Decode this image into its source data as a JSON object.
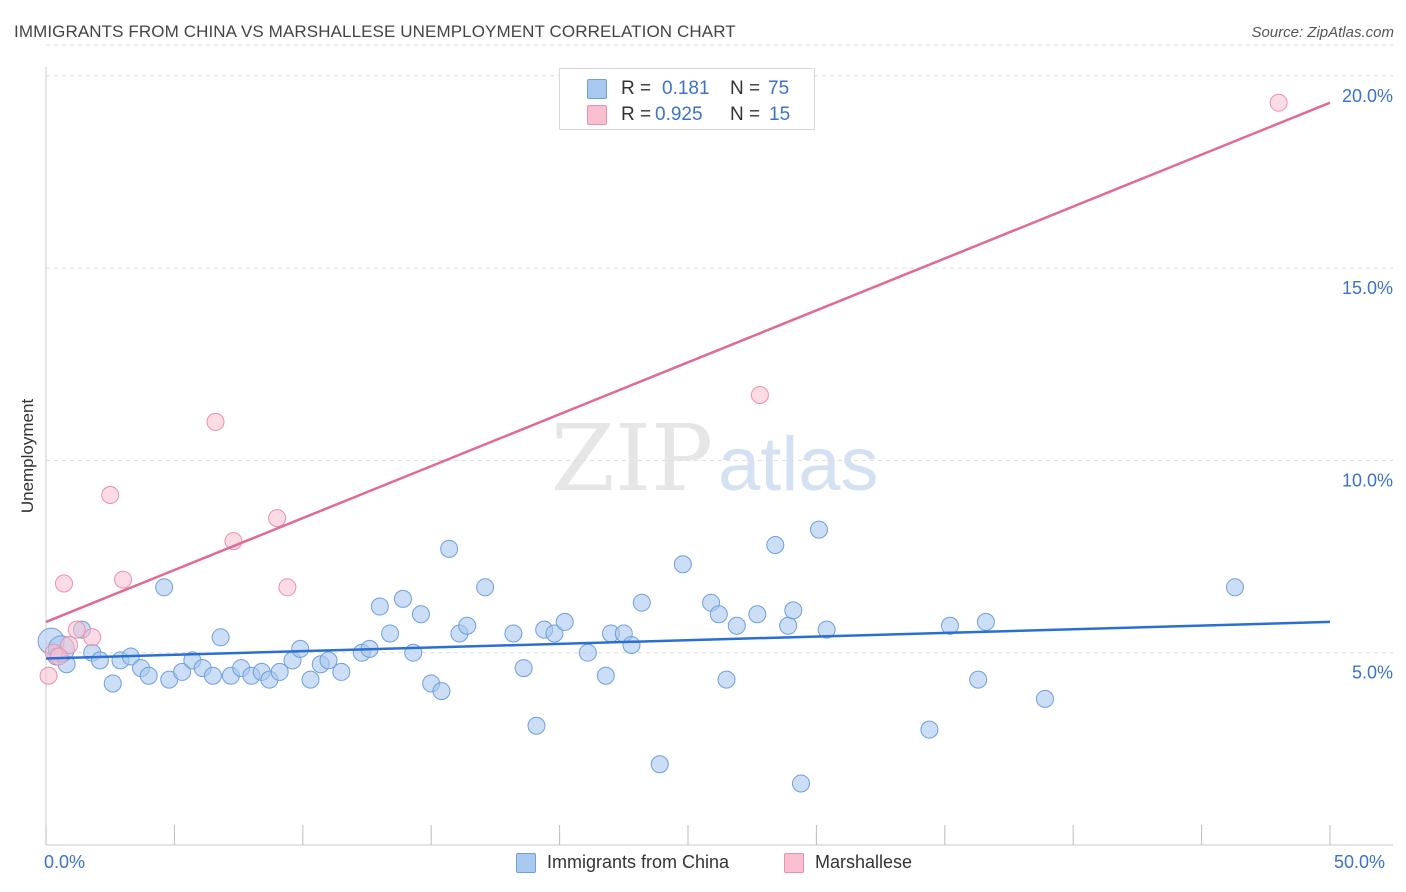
{
  "header": {
    "title": "IMMIGRANTS FROM CHINA VS MARSHALLESE UNEMPLOYMENT CORRELATION CHART",
    "source": "Source: ZipAtlas.com"
  },
  "watermark": {
    "zip": "ZIP",
    "atlas": "atlas"
  },
  "legend": {
    "series": [
      {
        "r_label": "R =",
        "r_value": "0.181",
        "n_label": "N =",
        "n_value": "75"
      },
      {
        "r_label": "R =",
        "r_value": "0.925",
        "n_label": "N =",
        "n_value": "15"
      }
    ]
  },
  "chart_data": {
    "type": "scatter",
    "title": "IMMIGRANTS FROM CHINA VS MARSHALLESE UNEMPLOYMENT CORRELATION CHART",
    "xlabel": "",
    "ylabel": "Unemployment",
    "xlim": [
      0,
      50
    ],
    "ylim": [
      0,
      20.8
    ],
    "x_tick_labels": [
      "0.0%",
      "50.0%"
    ],
    "y_ticks": [
      5,
      10,
      15,
      20
    ],
    "y_tick_labels": [
      "5.0%",
      "10.0%",
      "15.0%",
      "20.0%"
    ],
    "grid": true,
    "legend_position": "top-center",
    "colors": {
      "china_fill": "#a9c8ef",
      "china_stroke": "#6f9fdc",
      "china_line": "#2b6fd1",
      "marsh_fill": "#f7bfd0",
      "marsh_stroke": "#ec8fac",
      "marsh_line": "#e06a96",
      "tick_label": "#3c72c7",
      "grid": "#dcdcdc"
    },
    "series": [
      {
        "name": "Immigrants from China",
        "r": 0.181,
        "n": 75,
        "trend": {
          "x0": 0,
          "y0": 4.85,
          "x1": 50,
          "y1": 5.8
        },
        "points": [
          [
            0.2,
            5.3
          ],
          [
            0.4,
            4.9
          ],
          [
            0.8,
            4.7
          ],
          [
            1.4,
            5.6
          ],
          [
            1.8,
            5.0
          ],
          [
            2.1,
            4.8
          ],
          [
            2.6,
            4.2
          ],
          [
            2.9,
            4.8
          ],
          [
            3.3,
            4.9
          ],
          [
            3.7,
            4.6
          ],
          [
            4.0,
            4.4
          ],
          [
            4.6,
            6.7
          ],
          [
            4.8,
            4.3
          ],
          [
            5.3,
            4.5
          ],
          [
            5.7,
            4.8
          ],
          [
            6.1,
            4.6
          ],
          [
            6.5,
            4.4
          ],
          [
            6.8,
            5.4
          ],
          [
            7.2,
            4.4
          ],
          [
            7.6,
            4.6
          ],
          [
            8.0,
            4.4
          ],
          [
            8.4,
            4.5
          ],
          [
            8.7,
            4.3
          ],
          [
            9.1,
            4.5
          ],
          [
            9.6,
            4.8
          ],
          [
            9.9,
            5.1
          ],
          [
            10.3,
            4.3
          ],
          [
            10.7,
            4.7
          ],
          [
            11.0,
            4.8
          ],
          [
            11.5,
            4.5
          ],
          [
            12.3,
            5.0
          ],
          [
            12.6,
            5.1
          ],
          [
            13.0,
            6.2
          ],
          [
            13.4,
            5.5
          ],
          [
            13.9,
            6.4
          ],
          [
            14.3,
            5.0
          ],
          [
            14.6,
            6.0
          ],
          [
            15.0,
            4.2
          ],
          [
            15.4,
            4.0
          ],
          [
            15.7,
            7.7
          ],
          [
            16.1,
            5.5
          ],
          [
            16.4,
            5.7
          ],
          [
            17.1,
            6.7
          ],
          [
            18.2,
            5.5
          ],
          [
            18.6,
            4.6
          ],
          [
            19.1,
            3.1
          ],
          [
            19.4,
            5.6
          ],
          [
            19.8,
            5.5
          ],
          [
            20.2,
            5.8
          ],
          [
            21.1,
            5.0
          ],
          [
            21.8,
            4.4
          ],
          [
            22.0,
            5.5
          ],
          [
            22.5,
            5.5
          ],
          [
            22.8,
            5.2
          ],
          [
            23.2,
            6.3
          ],
          [
            23.9,
            2.1
          ],
          [
            24.8,
            7.3
          ],
          [
            25.9,
            6.3
          ],
          [
            26.2,
            6.0
          ],
          [
            26.5,
            4.3
          ],
          [
            26.9,
            5.7
          ],
          [
            27.7,
            6.0
          ],
          [
            28.4,
            7.8
          ],
          [
            28.9,
            5.7
          ],
          [
            29.1,
            6.1
          ],
          [
            29.4,
            1.6
          ],
          [
            30.1,
            8.2
          ],
          [
            30.4,
            5.6
          ],
          [
            34.4,
            3.0
          ],
          [
            35.2,
            5.7
          ],
          [
            36.3,
            4.3
          ],
          [
            36.6,
            5.8
          ],
          [
            38.9,
            3.8
          ],
          [
            46.3,
            6.7
          ],
          [
            0.6,
            5.1
          ]
        ]
      },
      {
        "name": "Marshallese",
        "r": 0.925,
        "n": 15,
        "trend": {
          "x0": 0,
          "y0": 5.8,
          "x1": 50,
          "y1": 19.3
        },
        "points": [
          [
            0.1,
            4.4
          ],
          [
            0.3,
            5.0
          ],
          [
            0.7,
            6.8
          ],
          [
            0.9,
            5.2
          ],
          [
            1.2,
            5.6
          ],
          [
            1.8,
            5.4
          ],
          [
            2.5,
            9.1
          ],
          [
            3.0,
            6.9
          ],
          [
            6.6,
            11.0
          ],
          [
            7.3,
            7.9
          ],
          [
            9.0,
            8.5
          ],
          [
            9.4,
            6.7
          ],
          [
            27.8,
            11.7
          ],
          [
            48.0,
            19.3
          ],
          [
            0.5,
            4.9
          ]
        ]
      }
    ]
  },
  "bottom_legend": {
    "items": [
      {
        "label": "Immigrants from China"
      },
      {
        "label": "Marshallese"
      }
    ]
  }
}
